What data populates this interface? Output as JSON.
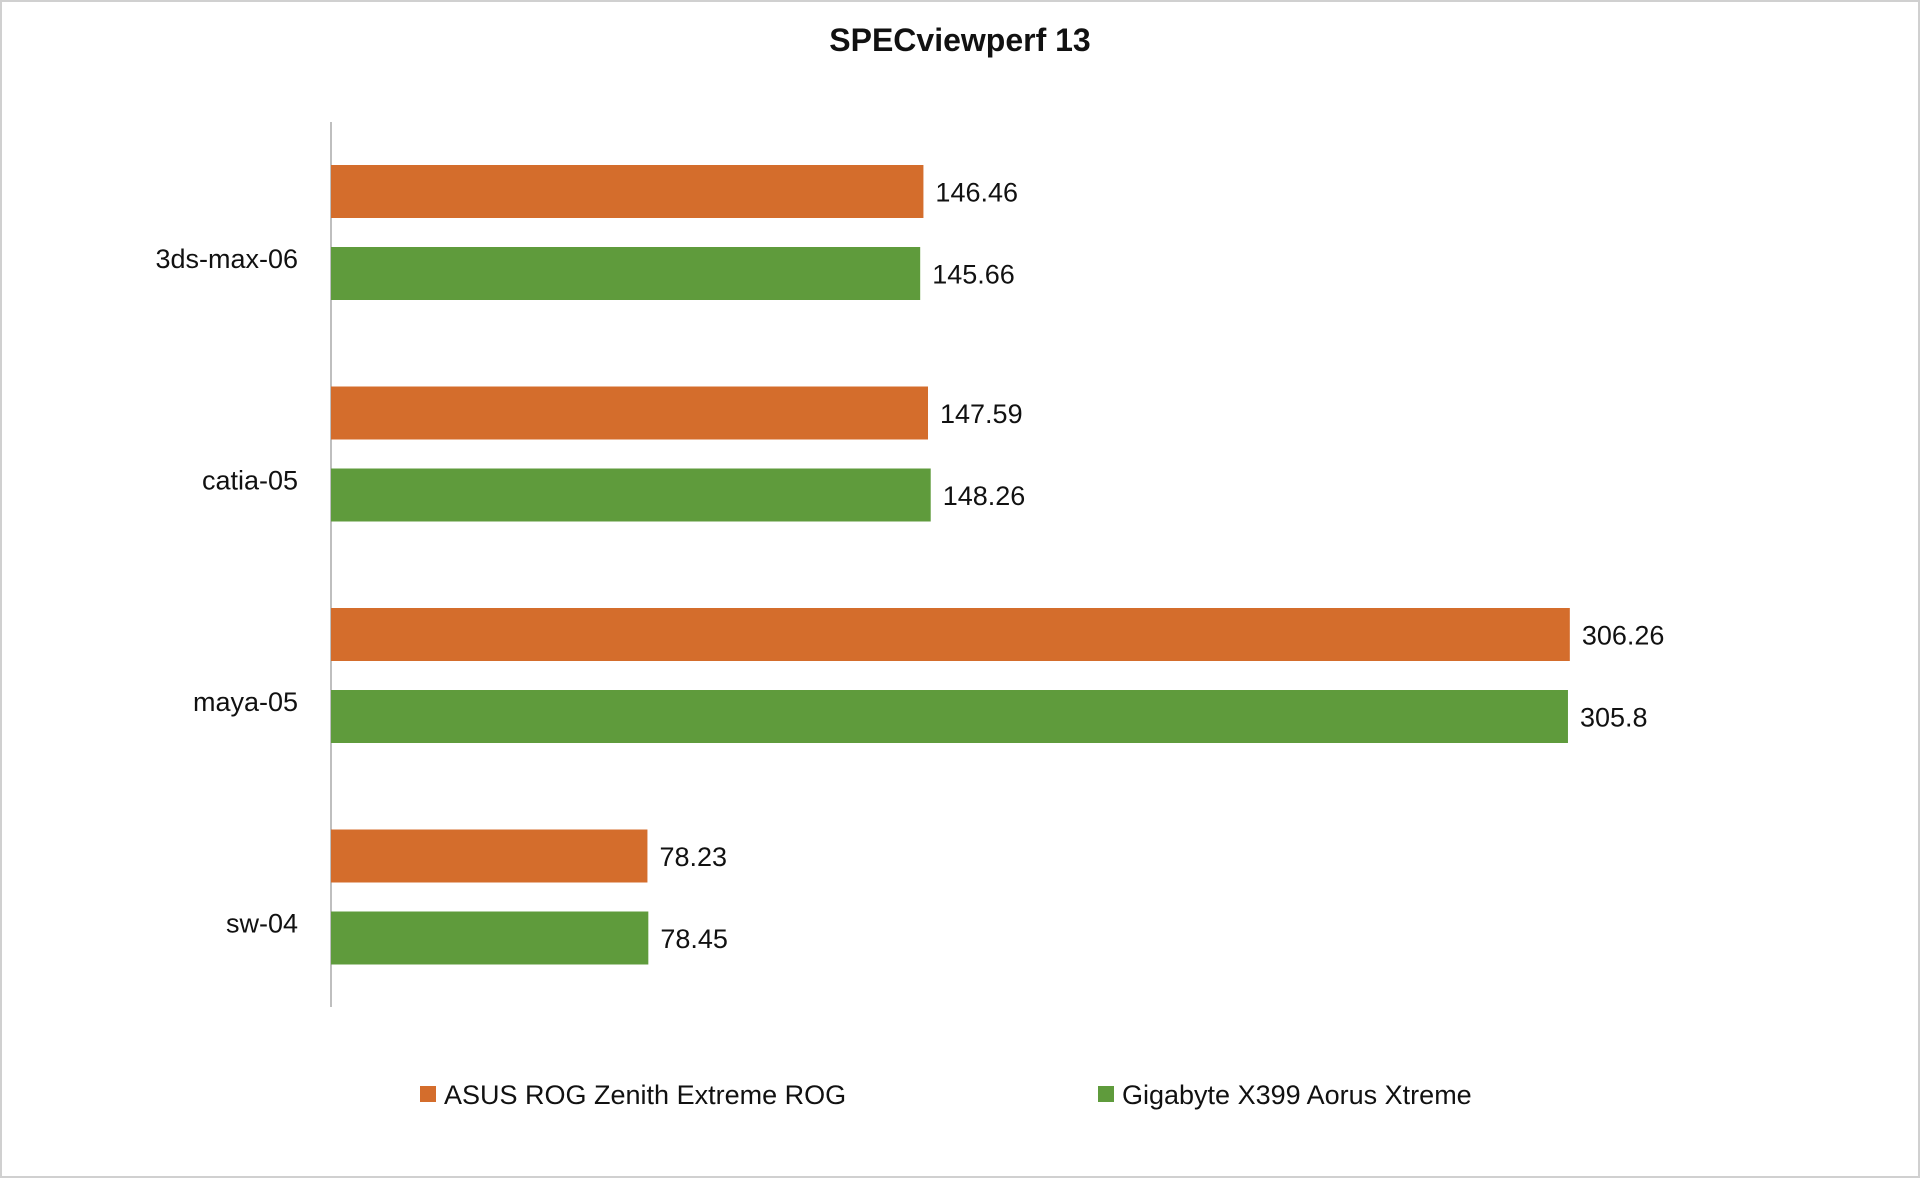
{
  "chart_data": {
    "type": "bar",
    "orientation": "horizontal",
    "title": "SPECviewperf 13",
    "xlabel": "",
    "ylabel": "",
    "categories": [
      "3ds-max-06",
      "catia-05",
      "maya-05",
      "sw-04"
    ],
    "series": [
      {
        "name": "ASUS ROG Zenith Extreme ROG",
        "color": "#d46d2c",
        "values": [
          146.46,
          147.59,
          306.26,
          78.23
        ],
        "labels": [
          "146.46",
          "147.59",
          "306.26",
          "78.23"
        ]
      },
      {
        "name": "Gigabyte X399 Aorus Xtreme",
        "color": "#5f9b3c",
        "values": [
          145.66,
          148.26,
          305.8,
          78.45
        ],
        "labels": [
          "145.66",
          "148.26",
          "305.8",
          "78.45"
        ]
      }
    ],
    "xlim": [
      0,
      330
    ],
    "grid": false,
    "axis_ticks_shown": false,
    "legend": "bottom"
  }
}
